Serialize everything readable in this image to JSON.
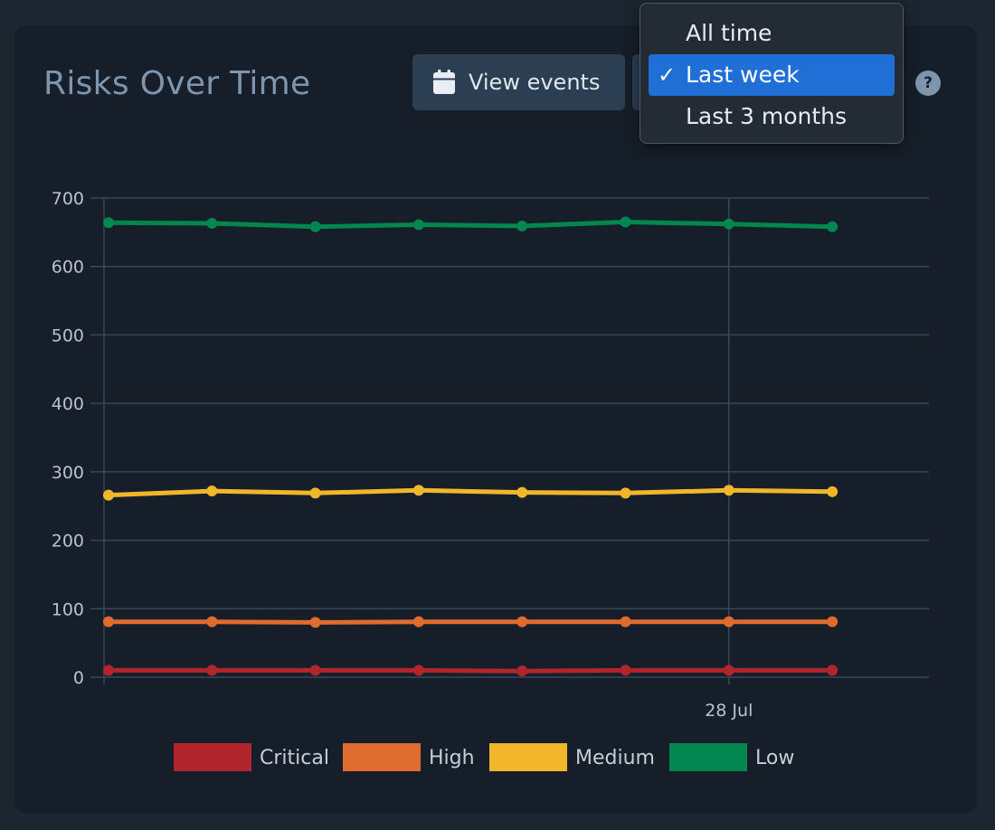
{
  "panel": {
    "title": "Risks Over Time",
    "view_events_label": "View events",
    "help_symbol": "?"
  },
  "range_dropdown": {
    "selected": "Last week",
    "options": [
      {
        "label": "All time",
        "selected": false
      },
      {
        "label": "Last week",
        "selected": true
      },
      {
        "label": "Last 3 months",
        "selected": false
      }
    ]
  },
  "icons": {
    "view_events": "calendar-icon",
    "selected_option": "checkmark-icon",
    "help": "question-circle-icon"
  },
  "chart_data": {
    "type": "line",
    "y_ticks": [
      "700",
      "600",
      "500",
      "400",
      "300",
      "200",
      "100",
      "0"
    ],
    "ylim": [
      0,
      700
    ],
    "grid": true,
    "x_count": 8,
    "x_labels": [
      {
        "index": 6,
        "label": "28 Jul"
      }
    ],
    "legend_position": "bottom",
    "series": [
      {
        "name": "Critical",
        "color": "#b3252d",
        "values": [
          10,
          10,
          10,
          10,
          9,
          10,
          10,
          10
        ]
      },
      {
        "name": "High",
        "color": "#e06b2e",
        "values": [
          81,
          81,
          80,
          81,
          81,
          81,
          81,
          81
        ]
      },
      {
        "name": "Medium",
        "color": "#f2b62b",
        "values": [
          266,
          272,
          269,
          273,
          270,
          269,
          273,
          271
        ]
      },
      {
        "name": "Low",
        "color": "#00864f",
        "values": [
          664,
          663,
          658,
          661,
          659,
          665,
          662,
          658
        ]
      }
    ]
  },
  "colors": {
    "page_background": "#1c2631",
    "card_background": "#161f29",
    "gridline": "#34485a",
    "title": "#7e95ad",
    "accent": "#1f6fd7"
  }
}
